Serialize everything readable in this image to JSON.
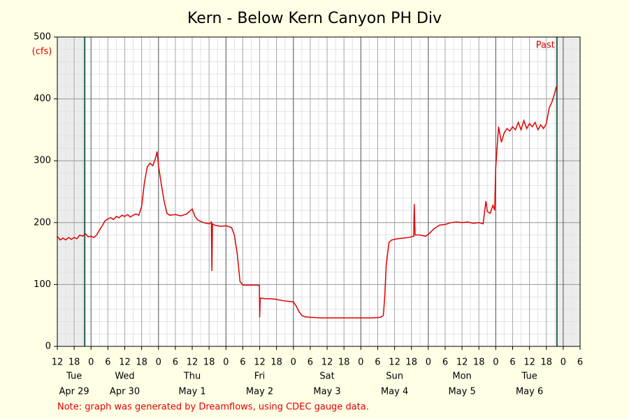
{
  "chart_data": {
    "type": "line",
    "title": "Kern - Below Kern Canyon PH Div",
    "ylabel": "(cfs)",
    "annotation": "Past",
    "note": "Note: graph was generated by Dreamflows, using CDEC gauge data.",
    "grid": true,
    "xlim": [
      -12,
      174
    ],
    "ylim": [
      0,
      500
    ],
    "yticks": [
      0,
      100,
      200,
      300,
      400,
      500
    ],
    "xticks": [
      {
        "value": -12,
        "label": "12"
      },
      {
        "value": -6,
        "label": "18"
      },
      {
        "value": 0,
        "label": "0"
      },
      {
        "value": 6,
        "label": "6"
      },
      {
        "value": 12,
        "label": "12"
      },
      {
        "value": 18,
        "label": "18"
      },
      {
        "value": 24,
        "label": "0"
      },
      {
        "value": 30,
        "label": "6"
      },
      {
        "value": 36,
        "label": "12"
      },
      {
        "value": 42,
        "label": "18"
      },
      {
        "value": 48,
        "label": "0"
      },
      {
        "value": 54,
        "label": "6"
      },
      {
        "value": 60,
        "label": "12"
      },
      {
        "value": 66,
        "label": "18"
      },
      {
        "value": 72,
        "label": "0"
      },
      {
        "value": 78,
        "label": "6"
      },
      {
        "value": 84,
        "label": "12"
      },
      {
        "value": 90,
        "label": "18"
      },
      {
        "value": 96,
        "label": "0"
      },
      {
        "value": 102,
        "label": "6"
      },
      {
        "value": 108,
        "label": "12"
      },
      {
        "value": 114,
        "label": "18"
      },
      {
        "value": 120,
        "label": "0"
      },
      {
        "value": 126,
        "label": "6"
      },
      {
        "value": 132,
        "label": "12"
      },
      {
        "value": 138,
        "label": "18"
      },
      {
        "value": 144,
        "label": "0"
      },
      {
        "value": 150,
        "label": "6"
      },
      {
        "value": 156,
        "label": "12"
      },
      {
        "value": 162,
        "label": "18"
      },
      {
        "value": 168,
        "label": "0"
      },
      {
        "value": 174,
        "label": "6"
      }
    ],
    "days": [
      {
        "day": "Tue",
        "date": "Apr 29"
      },
      {
        "day": "Wed",
        "date": "Apr 30"
      },
      {
        "day": "Thu",
        "date": "May 1"
      },
      {
        "day": "Fri",
        "date": "May 2"
      },
      {
        "day": "Sat",
        "date": "May 3"
      },
      {
        "day": "Sun",
        "date": "May 4"
      },
      {
        "day": "Mon",
        "date": "May 5"
      },
      {
        "day": "Tue",
        "date": "May 6"
      }
    ],
    "window_lines": [
      -2.25,
      165.75
    ],
    "x": [
      -12,
      -11,
      -10,
      -9,
      -8,
      -7,
      -6,
      -5,
      -4,
      -3,
      -2,
      -1,
      0,
      1,
      2,
      3,
      4,
      5,
      6,
      7,
      8,
      9,
      10,
      11,
      12,
      13,
      14,
      15,
      16,
      17,
      18,
      19,
      20,
      21,
      22,
      23,
      23.5,
      24,
      25,
      26,
      27,
      28,
      30,
      32,
      34,
      36,
      37,
      38,
      40,
      42,
      42.8,
      43,
      43.2,
      44,
      46,
      48,
      50,
      51,
      52,
      53,
      54,
      56,
      58,
      59.9,
      60,
      60.2,
      62,
      64,
      66,
      68,
      70,
      72,
      73,
      74,
      75,
      76,
      78,
      82,
      88,
      94,
      100,
      103,
      104,
      104.5,
      105,
      106,
      107,
      109,
      111,
      113,
      114.8,
      115,
      115.3,
      117,
      119,
      120,
      122,
      124,
      126,
      128,
      130,
      132,
      134,
      136,
      138,
      139.5,
      140.5,
      141,
      142,
      143,
      143.6,
      144,
      145,
      146,
      147,
      148,
      149,
      150,
      151,
      152,
      153,
      154,
      155,
      156,
      157,
      158,
      159,
      160,
      161,
      162,
      163,
      164,
      165,
      165.6
    ],
    "series": [
      {
        "color": "#e00000",
        "values": [
          178,
          172,
          175,
          172,
          176,
          173,
          176,
          174,
          180,
          178,
          182,
          177,
          178,
          176,
          180,
          188,
          195,
          203,
          206,
          208,
          205,
          210,
          208,
          212,
          210,
          213,
          209,
          212,
          214,
          212,
          226,
          265,
          290,
          296,
          292,
          305,
          315,
          292,
          262,
          235,
          215,
          212,
          213,
          211,
          214,
          222,
          210,
          204,
          200,
          198,
          201,
          122,
          198,
          196,
          194,
          195,
          192,
          180,
          150,
          105,
          99,
          99,
          99,
          99,
          47,
          78,
          77,
          77,
          76,
          74,
          73,
          72,
          65,
          56,
          50,
          48,
          47,
          46,
          46,
          46,
          46,
          47,
          50,
          80,
          130,
          168,
          172,
          174,
          175,
          176,
          178,
          230,
          180,
          180,
          178,
          181,
          190,
          196,
          197,
          200,
          201,
          200,
          201,
          199,
          200,
          198,
          235,
          218,
          215,
          228,
          220,
          290,
          355,
          330,
          345,
          352,
          348,
          355,
          350,
          362,
          350,
          365,
          352,
          360,
          355,
          362,
          350,
          358,
          352,
          360,
          385,
          395,
          410,
          420
        ]
      }
    ]
  }
}
